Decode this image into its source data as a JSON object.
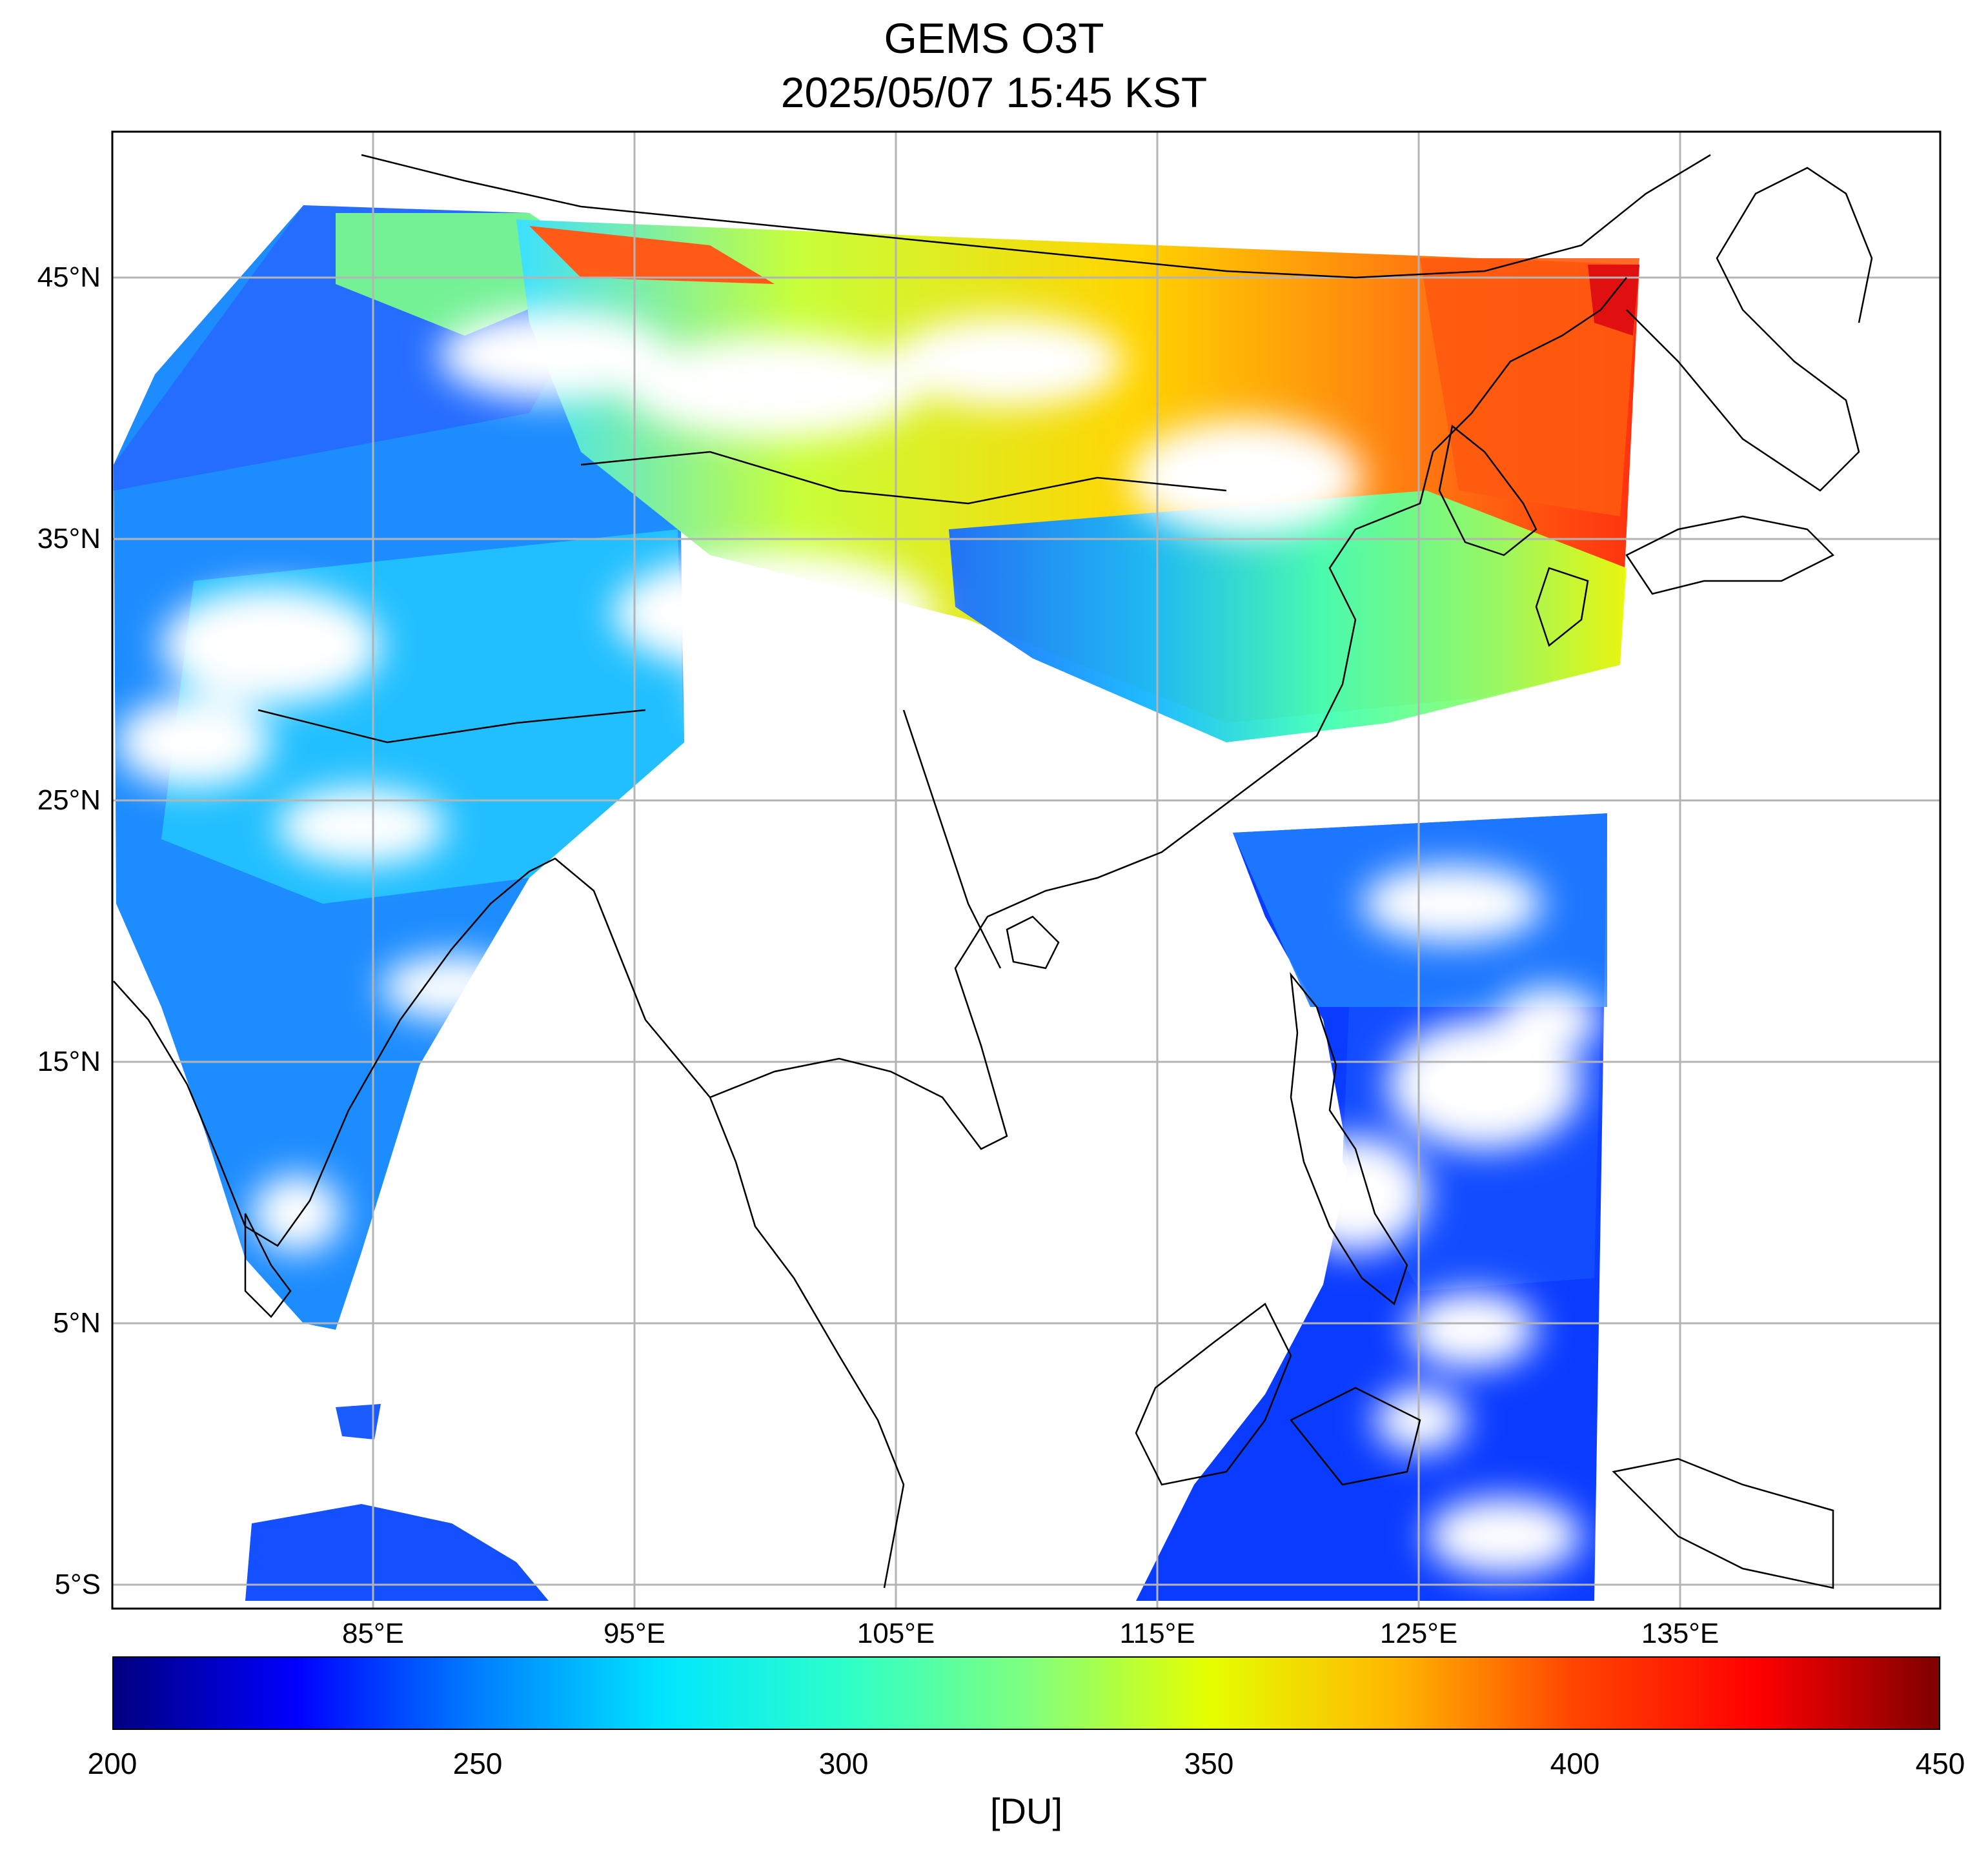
{
  "title": {
    "line1": "GEMS O3T",
    "line2": "2025/05/07 15:45 KST"
  },
  "map": {
    "lat_labels": [
      {
        "text": "45°N",
        "value": 45
      },
      {
        "text": "35°N",
        "value": 35
      },
      {
        "text": "25°N",
        "value": 25
      },
      {
        "text": "15°N",
        "value": 15
      },
      {
        "text": "5°N",
        "value": 5
      },
      {
        "text": "5°S",
        "value": -5
      }
    ],
    "lon_labels": [
      {
        "text": "85°E",
        "value": 85
      },
      {
        "text": "95°E",
        "value": 95
      },
      {
        "text": "105°E",
        "value": 105
      },
      {
        "text": "115°E",
        "value": 115
      },
      {
        "text": "125°E",
        "value": 125
      },
      {
        "text": "135°E",
        "value": 135
      }
    ],
    "lon_range": [
      75,
      145
    ],
    "lat_range": [
      -6,
      50.5
    ],
    "grid": true,
    "colormap": [
      "#00007f",
      "#0000ff",
      "#007fff",
      "#00e5ff",
      "#2cffca",
      "#7fff7f",
      "#e5ff00",
      "#ffb800",
      "#ff4500",
      "#ff0000",
      "#7f0000"
    ]
  },
  "colorbar": {
    "ticks": [
      "200",
      "250",
      "300",
      "350",
      "400",
      "450"
    ],
    "range": [
      200,
      450
    ],
    "unit": "[DU]"
  }
}
